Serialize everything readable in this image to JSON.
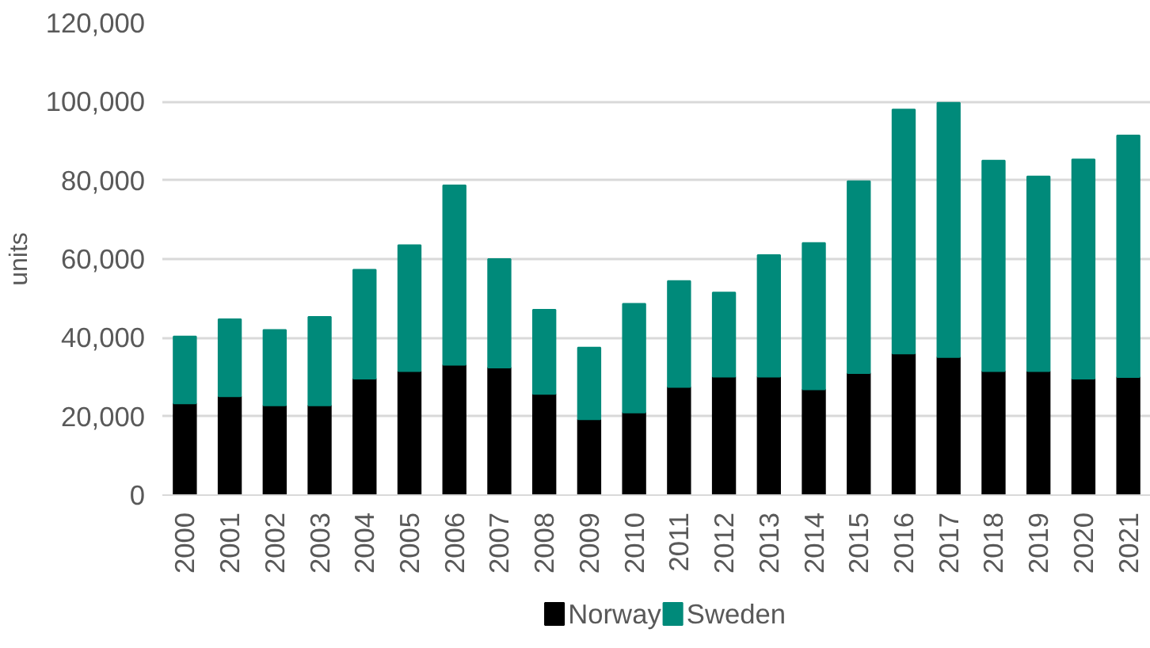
{
  "chart_data": {
    "type": "bar",
    "stacked": true,
    "ylabel": "units",
    "categories": [
      "2000",
      "2001",
      "2002",
      "2003",
      "2004",
      "2005",
      "2006",
      "2007",
      "2008",
      "2009",
      "2010",
      "2011",
      "2012",
      "2013",
      "2014",
      "2015",
      "2016",
      "2017",
      "2018",
      "2019",
      "2020",
      "2021"
    ],
    "series": [
      {
        "name": "Norway",
        "color": "#000000",
        "values": [
          23300,
          25100,
          22800,
          22800,
          29600,
          31500,
          33100,
          32400,
          25700,
          19300,
          21000,
          27500,
          30100,
          30100,
          26900,
          31000,
          36000,
          35100,
          31500,
          31500,
          29600,
          30000
        ]
      },
      {
        "name": "Sweden",
        "color": "#008a7a",
        "values": [
          17000,
          19600,
          19200,
          22500,
          27700,
          32000,
          45600,
          27600,
          21400,
          18200,
          27600,
          26900,
          21400,
          30900,
          37200,
          48800,
          62000,
          64600,
          53500,
          49500,
          55700,
          61400
        ]
      }
    ],
    "ylim": [
      0,
      120000
    ],
    "yticks": [
      {
        "value": 0,
        "label": "0"
      },
      {
        "value": 20000,
        "label": "20,000"
      },
      {
        "value": 40000,
        "label": "40,000"
      },
      {
        "value": 60000,
        "label": "60,000"
      },
      {
        "value": 80000,
        "label": "80,000"
      },
      {
        "value": 100000,
        "label": "100,000"
      },
      {
        "value": 120000,
        "label": "120,000"
      }
    ],
    "grid": "y",
    "legend": "bottom"
  }
}
